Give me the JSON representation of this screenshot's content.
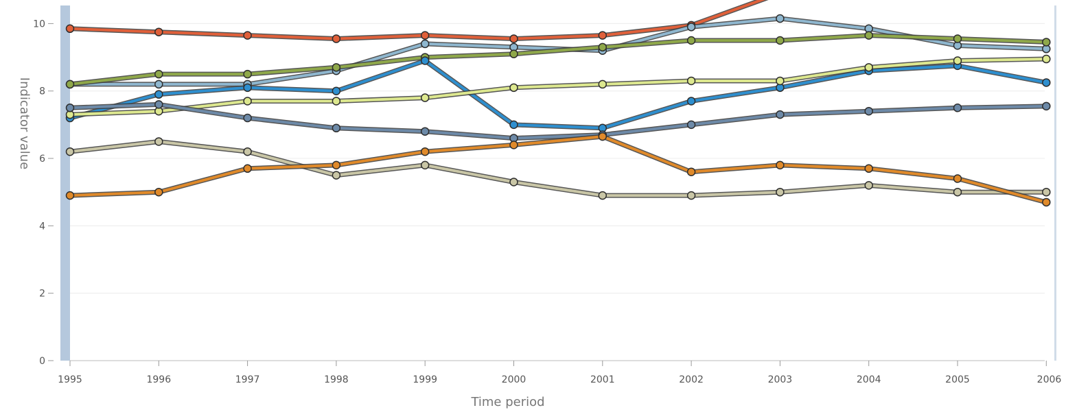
{
  "chart_data": {
    "type": "line",
    "xlabel": "Time period",
    "ylabel": "Indicator value",
    "ylim": [
      0,
      10.7
    ],
    "yticks": [
      0,
      2,
      4,
      6,
      8,
      10
    ],
    "grid": true,
    "x": [
      "1995",
      "1996",
      "1997",
      "1998",
      "1999",
      "2000",
      "2001",
      "2002",
      "2003",
      "2004",
      "2005",
      "2006"
    ],
    "series": [
      {
        "color": "#e0603a",
        "values": [
          9.85,
          9.75,
          9.65,
          9.55,
          9.65,
          9.55,
          9.65,
          9.95,
          10.9,
          null,
          null,
          null
        ]
      },
      {
        "color": "#8fb7cf",
        "values": [
          8.2,
          8.2,
          8.2,
          8.6,
          9.4,
          9.3,
          9.2,
          9.9,
          10.15,
          9.85,
          9.35,
          9.25
        ]
      },
      {
        "color": "#8fa84a",
        "values": [
          8.2,
          8.5,
          8.5,
          8.7,
          9.0,
          9.1,
          9.3,
          9.5,
          9.5,
          9.65,
          9.55,
          9.45
        ]
      },
      {
        "color": "#2e8fcf",
        "values": [
          7.2,
          7.9,
          8.1,
          8.0,
          8.9,
          7.0,
          6.9,
          7.7,
          8.1,
          8.6,
          8.75,
          8.25
        ]
      },
      {
        "color": "#dde88f",
        "values": [
          7.3,
          7.4,
          7.7,
          7.7,
          7.8,
          8.1,
          8.2,
          8.3,
          8.3,
          8.7,
          8.9,
          8.95
        ]
      },
      {
        "color": "#6d8aa8",
        "values": [
          7.5,
          7.6,
          7.2,
          6.9,
          6.8,
          6.6,
          6.7,
          7.0,
          7.3,
          7.4,
          7.5,
          7.55
        ]
      },
      {
        "color": "#c9c6a6",
        "values": [
          6.2,
          6.5,
          6.2,
          5.5,
          5.8,
          5.3,
          4.9,
          4.9,
          5.0,
          5.2,
          5.0,
          5.0
        ]
      },
      {
        "color": "#e08a2a",
        "values": [
          4.9,
          5.0,
          5.7,
          5.8,
          6.2,
          6.4,
          6.65,
          5.6,
          5.8,
          5.7,
          5.4,
          4.7
        ]
      }
    ]
  }
}
